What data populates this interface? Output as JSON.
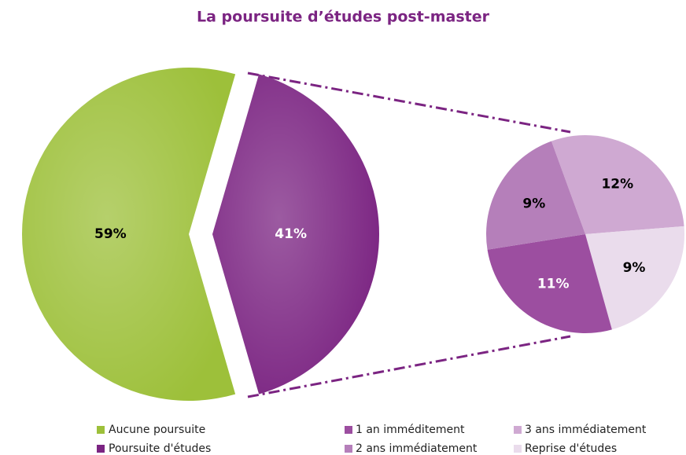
{
  "chart_data": {
    "type": "pie-of-pie",
    "title": "La poursuite d’études post-master",
    "categories": [
      "Aucune poursuite",
      "Poursuite d'études"
    ],
    "values": [
      59,
      41
    ],
    "value_labels": [
      "59%",
      "41%"
    ],
    "colors": [
      "#9dc03a",
      "#7b2482"
    ],
    "sub_categories": [
      "1 an imméditement",
      "2 ans immédiatement",
      "3 ans immédiatement",
      "Reprise d'études"
    ],
    "sub_values": [
      11,
      9,
      12,
      9
    ],
    "sub_value_labels": [
      "11%",
      "9%",
      "12%",
      "9%"
    ],
    "sub_colors": [
      "#9c4ea0",
      "#b57fba",
      "#cfa9d2",
      "#eadcec"
    ]
  }
}
